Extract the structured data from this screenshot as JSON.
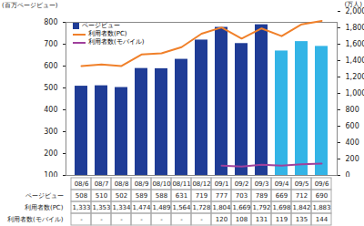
{
  "chart_data": {
    "type": "bar",
    "y_label": "(百万ページビュー)",
    "y2_label": "(万人)",
    "categories": [
      "08/6",
      "08/7",
      "08/8",
      "08/9",
      "08/10",
      "08/11",
      "08/12",
      "09/1",
      "09/2",
      "09/3",
      "09/4",
      "09/5",
      "09/6"
    ],
    "series": [
      {
        "name": "ページビュー",
        "type": "bar",
        "colors": [
          "#1f3c96",
          "#1f3c96",
          "#1f3c96",
          "#1f3c96",
          "#1f3c96",
          "#1f3c96",
          "#1f3c96",
          "#1f3c96",
          "#1f3c96",
          "#1f3c96",
          "#33b4e6",
          "#33b4e6",
          "#33b4e6"
        ],
        "values": [
          508,
          510,
          502,
          589,
          588,
          631,
          719,
          777,
          703,
          789,
          669,
          712,
          690
        ]
      },
      {
        "name": "利用者数(PC)",
        "type": "line",
        "axis": "y2",
        "color": "#f0802a",
        "values": [
          1333,
          1353,
          1334,
          1474,
          1489,
          1564,
          1728,
          1804,
          1669,
          1792,
          1698,
          1842,
          1883
        ],
        "value_labels": [
          "1,333",
          "1,353",
          "1,334",
          "1,474",
          "1,489",
          "1,564",
          "1,728",
          "1,804",
          "1,669",
          "1,792",
          "1,698",
          "1,842",
          "1,883"
        ]
      },
      {
        "name": "利用者数(モバイル)",
        "type": "line",
        "axis": "y2",
        "color": "#a0409c",
        "values": [
          null,
          null,
          null,
          null,
          null,
          null,
          null,
          120,
          108,
          131,
          119,
          135,
          144
        ],
        "value_labels": [
          "-",
          "-",
          "-",
          "-",
          "-",
          "-",
          "-",
          "120",
          "108",
          "131",
          "119",
          "135",
          "144"
        ]
      }
    ],
    "ylim": [
      100,
      800
    ],
    "yticks": [
      100,
      200,
      300,
      400,
      500,
      600,
      700,
      800
    ],
    "y2lim": [
      0,
      2000
    ],
    "y2ticks": [
      0,
      200,
      400,
      600,
      800,
      {
        "value": 1000,
        "label": "1,000"
      },
      {
        "value": 1200,
        "label": "1,200"
      },
      {
        "value": 1400,
        "label": "1,400"
      },
      {
        "value": 1600,
        "label": "1,600"
      },
      {
        "value": 1800,
        "label": "1,800"
      },
      {
        "value": 2000,
        "label": "2,000"
      }
    ],
    "grid": false,
    "data_labels": true
  }
}
